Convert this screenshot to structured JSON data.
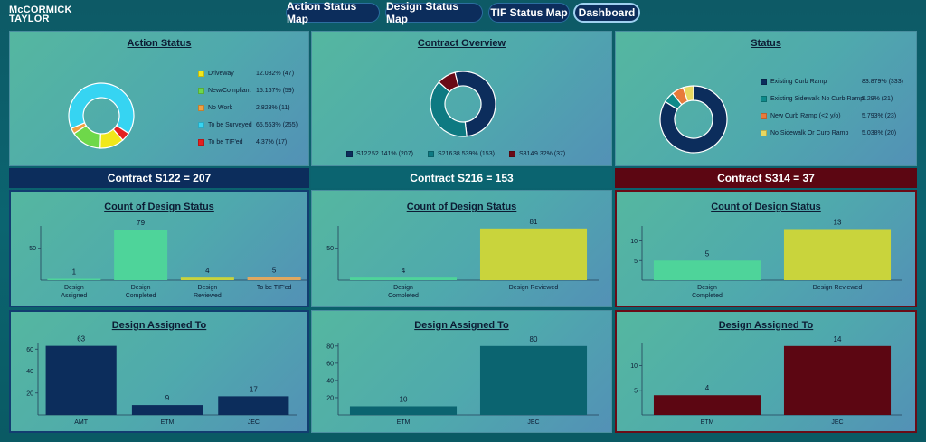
{
  "brand": {
    "line1": "McCORMICK",
    "line2": "TAYLOR"
  },
  "nav": [
    {
      "label": "Action Status Map"
    },
    {
      "label": "Design Status Map"
    },
    {
      "label": "TIF Status Map"
    },
    {
      "label": "Dashboard",
      "active": true
    }
  ],
  "colors": {
    "s122": "#0c2d5c",
    "s216": "#0b6470",
    "s314": "#5c0612",
    "green": "#4ed49a",
    "yellow": "#c9d43c",
    "orange": "#e8a040",
    "cyan": "#30d4f0",
    "red": "#e02020"
  },
  "action_status": {
    "title": "Action Status",
    "legend": [
      {
        "label": "Driveway",
        "value": "12.082% (47)",
        "color": "#f1e81a"
      },
      {
        "label": "New/Compliant",
        "value": "15.167% (59)",
        "color": "#6ed84a"
      },
      {
        "label": "No Work",
        "value": "2.828% (11)",
        "color": "#f0a040"
      },
      {
        "label": "To be Surveyed",
        "value": "65.553% (255)",
        "color": "#36d4f2"
      },
      {
        "label": "To be TIF'ed",
        "value": "4.37% (17)",
        "color": "#e42020"
      }
    ]
  },
  "contract_overview": {
    "title": "Contract Overview",
    "legend": [
      {
        "label": "S122",
        "value": "52.141% (207)",
        "color": "#0c2d5c"
      },
      {
        "label": "S216",
        "value": "38.539% (153)",
        "color": "#0e7a82"
      },
      {
        "label": "S314",
        "value": "9.32% (37)",
        "color": "#6a0a16"
      }
    ]
  },
  "status": {
    "title": "Status",
    "legend": [
      {
        "label": "Existing Curb Ramp",
        "value": "83.879% (333)",
        "color": "#0c2d5c"
      },
      {
        "label": "Existing Sidewalk No Curb Ramp",
        "value": "5.29% (21)",
        "color": "#0e8a8a"
      },
      {
        "label": "New Curb Ramp (<2 y/o)",
        "value": "5.793% (23)",
        "color": "#e87a3a"
      },
      {
        "label": "No Sidewalk Or Curb Ramp",
        "value": "5.038% (20)",
        "color": "#e8d860"
      }
    ]
  },
  "bands": [
    {
      "label": "Contract S122  = 207"
    },
    {
      "label": "Contract S216 = 153"
    },
    {
      "label": "Contract S314  = 37"
    }
  ],
  "chart_data": [
    {
      "type": "pie",
      "id": "action_status",
      "title": "Action Status",
      "categories": [
        "Driveway",
        "New/Compliant",
        "No Work",
        "To be Surveyed",
        "To be TIF'ed"
      ],
      "values": [
        47,
        59,
        11,
        255,
        17
      ]
    },
    {
      "type": "pie",
      "id": "contract_overview",
      "title": "Contract Overview",
      "categories": [
        "S122",
        "S216",
        "S314"
      ],
      "values": [
        207,
        153,
        37
      ]
    },
    {
      "type": "pie",
      "id": "status",
      "title": "Status",
      "categories": [
        "Existing Curb Ramp",
        "Existing Sidewalk No Curb Ramp",
        "New Curb Ramp (<2 y/o)",
        "No Sidewalk Or Curb Ramp"
      ],
      "values": [
        333,
        21,
        23,
        20
      ]
    },
    {
      "type": "bar",
      "id": "design_s122",
      "title": "Count of Design Status",
      "categories": [
        "Design\nAssigned",
        "Design\nCompleted",
        "Design\nReviewed",
        "To be TIF'ed"
      ],
      "values": [
        1,
        79,
        4,
        5
      ],
      "colors": [
        "#4ed49a",
        "#4ed49a",
        "#c9d43c",
        "#e0a860"
      ],
      "yticks": [
        50
      ],
      "ylim": [
        0,
        85
      ]
    },
    {
      "type": "bar",
      "id": "design_s216",
      "title": "Count of Design Status",
      "categories": [
        "Design\nCompleted",
        "Design Reviewed"
      ],
      "values": [
        4,
        81
      ],
      "colors": [
        "#4ed49a",
        "#c9d43c"
      ],
      "yticks": [
        50
      ],
      "ylim": [
        0,
        85
      ]
    },
    {
      "type": "bar",
      "id": "design_s314",
      "title": "Count of Design Status",
      "categories": [
        "Design\nCompleted",
        "Design Reviewed"
      ],
      "values": [
        5,
        13
      ],
      "colors": [
        "#4ed49a",
        "#c9d43c"
      ],
      "yticks": [
        5,
        10
      ],
      "ylim": [
        0,
        13.8
      ]
    },
    {
      "type": "bar",
      "id": "assigned_s122",
      "title": "Design Assigned To",
      "categories": [
        "AMT",
        "ETM",
        "JEC"
      ],
      "values": [
        63,
        9,
        17
      ],
      "colors": [
        "#0c2d5c",
        "#0c2d5c",
        "#0c2d5c"
      ],
      "yticks": [
        20,
        40,
        60
      ],
      "ylim": [
        0,
        66
      ]
    },
    {
      "type": "bar",
      "id": "assigned_s216",
      "title": "Design Assigned To",
      "categories": [
        "ETM",
        "JEC"
      ],
      "values": [
        10,
        80
      ],
      "colors": [
        "#0b6470",
        "#0b6470"
      ],
      "yticks": [
        20,
        40,
        60,
        80
      ],
      "ylim": [
        0,
        84
      ]
    },
    {
      "type": "bar",
      "id": "assigned_s314",
      "title": "Design Assigned To",
      "categories": [
        "ETM",
        "JEC"
      ],
      "values": [
        4,
        14
      ],
      "colors": [
        "#5c0612",
        "#5c0612"
      ],
      "yticks": [
        5,
        10
      ],
      "ylim": [
        0,
        14.7
      ]
    }
  ]
}
